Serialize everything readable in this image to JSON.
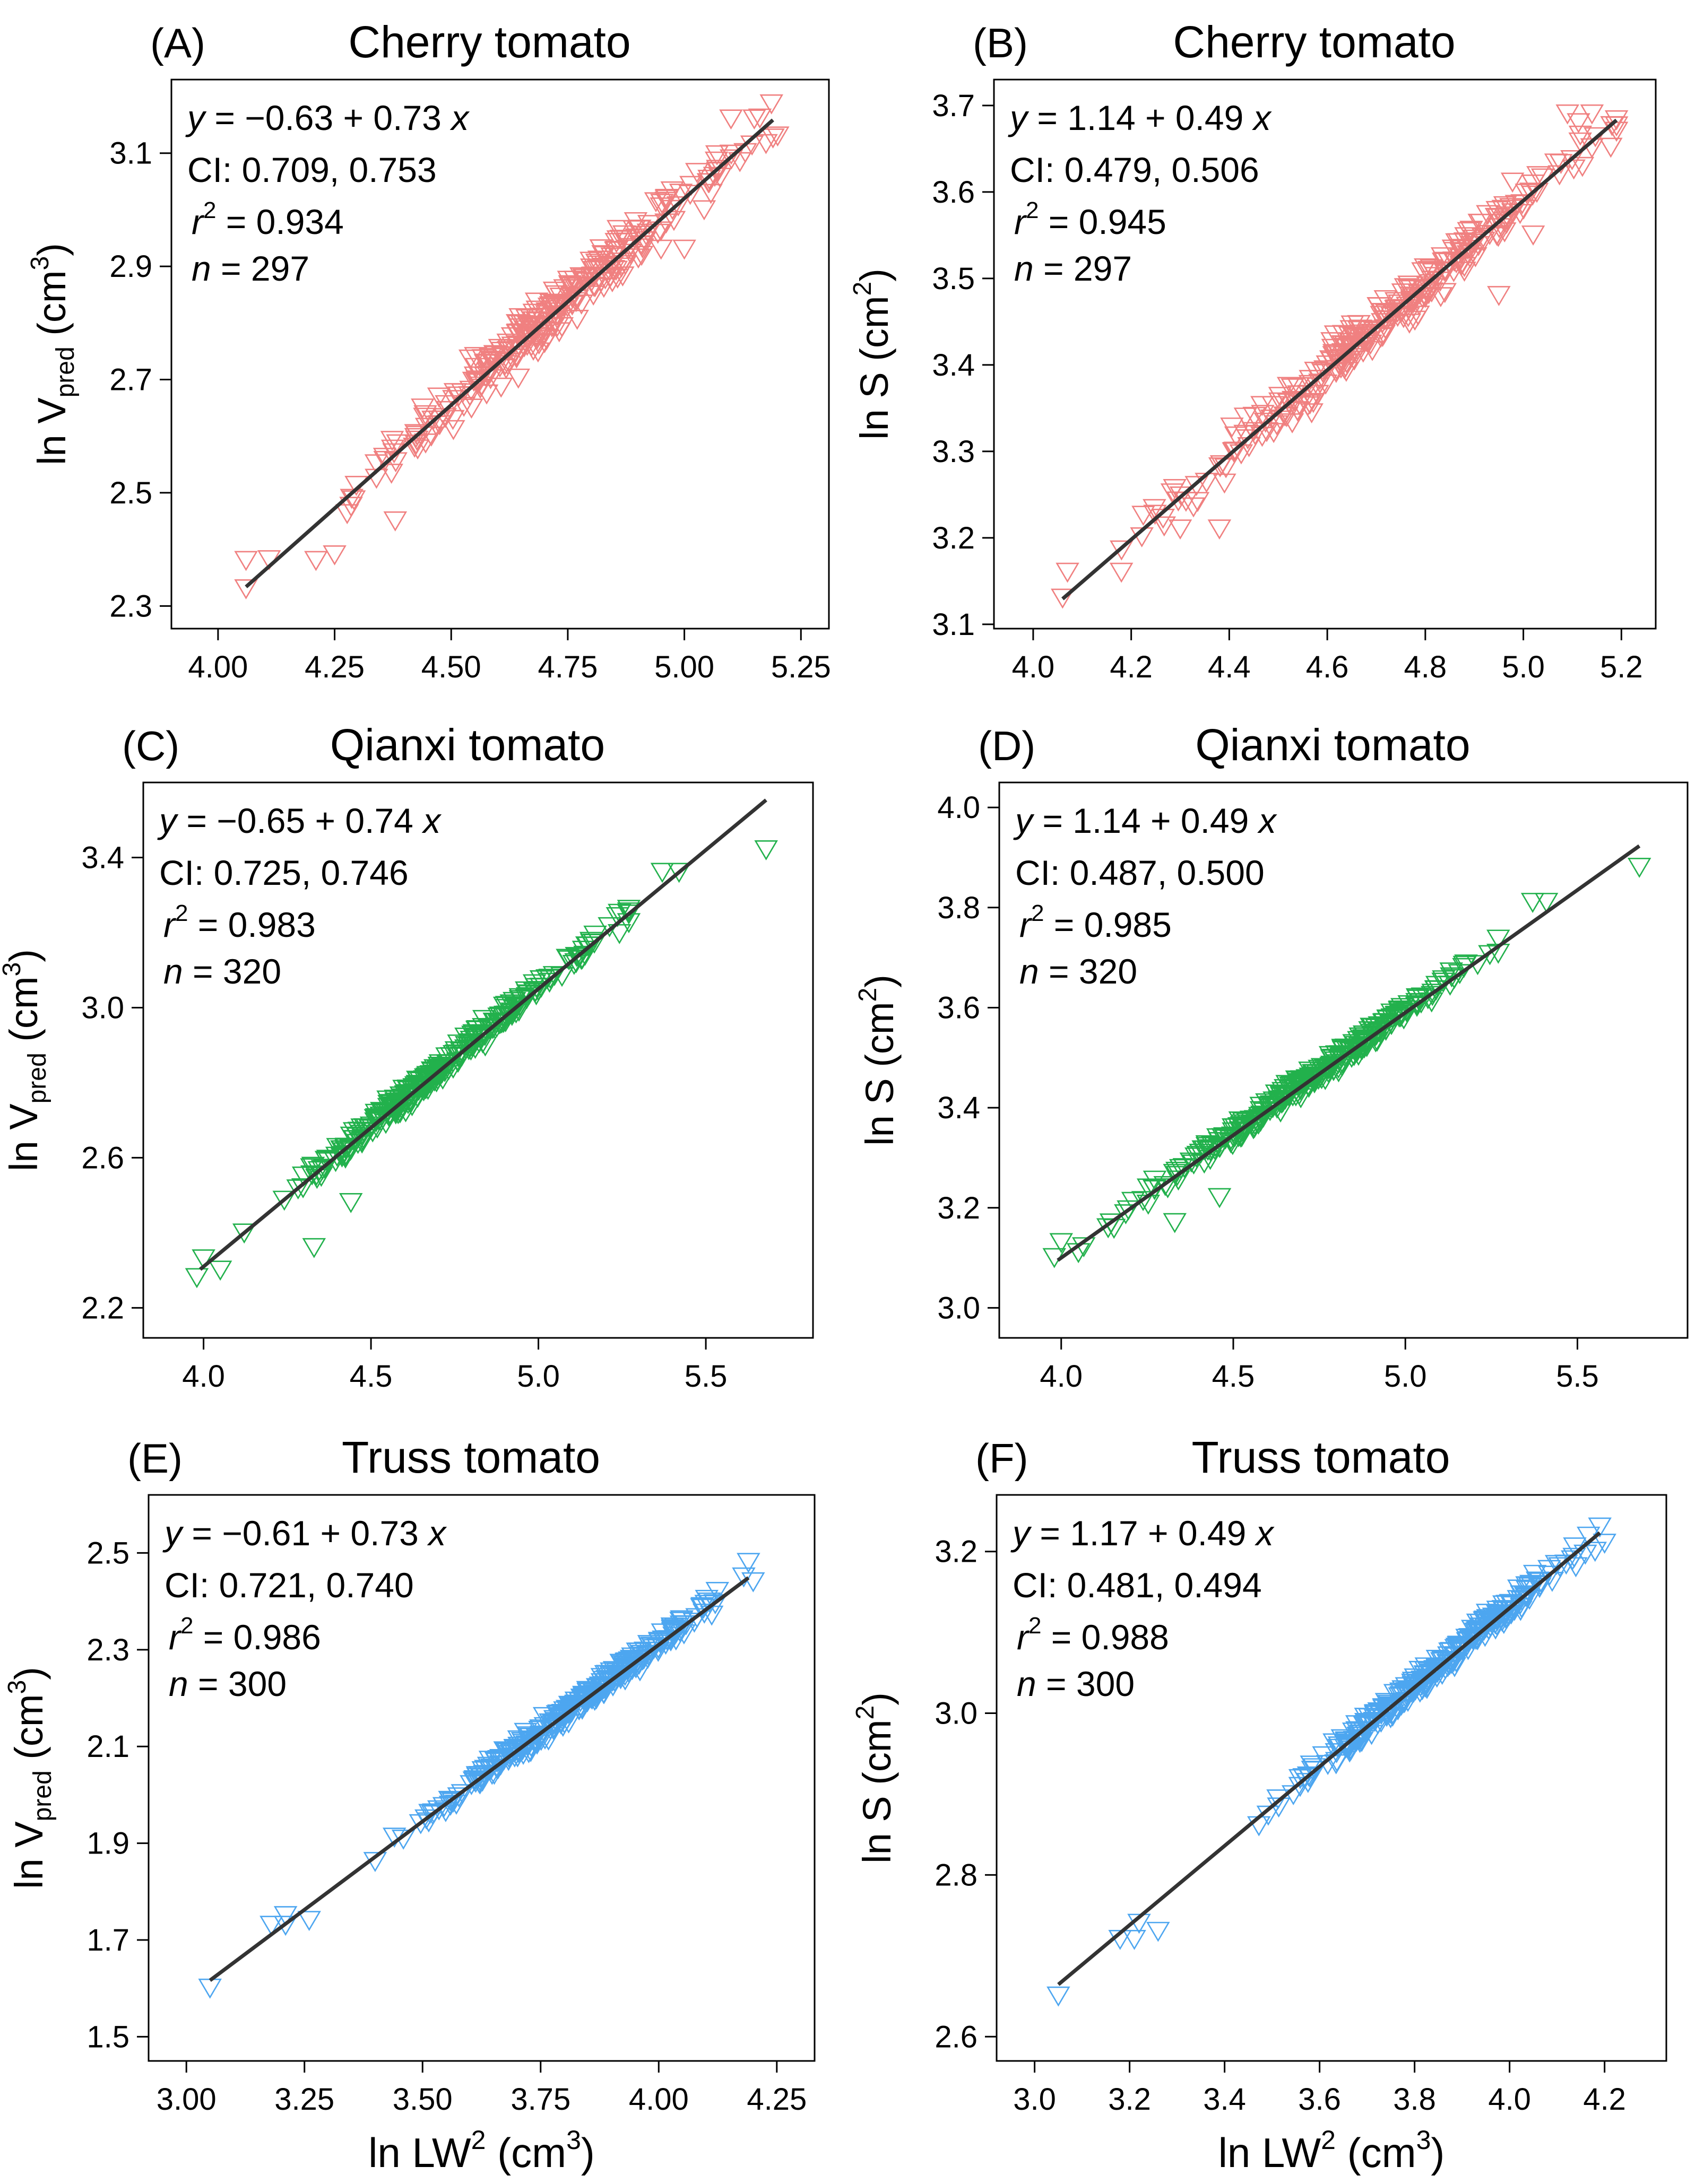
{
  "figure": {
    "x_axis_label": "ln LW",
    "x_axis_label_sup": "2",
    "x_axis_label_unit": "(cm",
    "x_axis_label_unit_sup": "3",
    "x_axis_label_close": ")"
  },
  "chart_data": [
    {
      "panel_letter": "(A)",
      "title": "Cherry tomato",
      "type": "scatter",
      "color": "#f08080",
      "ylabel_main": "ln V",
      "ylabel_sub": "pred",
      "ylabel_unit": "(cm",
      "ylabel_unit_sup": "3",
      "ylabel_close": ")",
      "xlim": [
        3.9,
        5.31
      ],
      "ylim": [
        2.26,
        3.23
      ],
      "xticks": [
        "4.00",
        "4.25",
        "4.50",
        "4.75",
        "5.00",
        "5.25"
      ],
      "yticks": [
        "2.3",
        "2.5",
        "2.7",
        "2.9",
        "3.1"
      ],
      "fit": {
        "intercept": -0.63,
        "slope": 0.73,
        "x_range": [
          4.06,
          5.19
        ]
      },
      "stats": {
        "eq_y": "y",
        "eq_rest": " = −0.63 + 0.73 ",
        "eq_x": "x",
        "ci": "CI: 0.709, 0.753",
        "r2_r": "r",
        "r2_sup": "2",
        "r2_val": " = 0.934",
        "n_n": "n",
        "n_val": " = 297"
      },
      "n": 297,
      "x_range": [
        4.06,
        5.19
      ],
      "noise": 0.045,
      "seed": 11,
      "outliers": [
        [
          4.06,
          2.33
        ],
        [
          4.06,
          2.38
        ],
        [
          4.38,
          2.45
        ],
        [
          4.21,
          2.38
        ],
        [
          5.1,
          3.16
        ],
        [
          5.15,
          3.16
        ],
        [
          5.2,
          3.13
        ],
        [
          4.95,
          2.93
        ],
        [
          5.0,
          2.93
        ],
        [
          4.25,
          2.39
        ]
      ]
    },
    {
      "panel_letter": "(B)",
      "title": "Cherry tomato",
      "type": "scatter",
      "color": "#f08080",
      "ylabel_main": "ln S",
      "ylabel_sub": "",
      "ylabel_unit": "(cm",
      "ylabel_unit_sup": "2",
      "ylabel_close": ")",
      "xlim": [
        3.92,
        5.27
      ],
      "ylim": [
        3.095,
        3.73
      ],
      "xticks": [
        "4.0",
        "4.2",
        "4.4",
        "4.6",
        "4.8",
        "5.0",
        "5.2"
      ],
      "yticks": [
        "3.1",
        "3.2",
        "3.3",
        "3.4",
        "3.5",
        "3.6",
        "3.7"
      ],
      "fit": {
        "intercept": 1.14,
        "slope": 0.49,
        "x_range": [
          4.06,
          5.19
        ]
      },
      "stats": {
        "eq_y": "y",
        "eq_rest": " = 1.14 + 0.49 ",
        "eq_x": "x",
        "ci": "CI: 0.479, 0.506",
        "r2_r": "r",
        "r2_sup": "2",
        "r2_val": " = 0.945",
        "n_n": "n",
        "n_val": " = 297"
      },
      "n": 297,
      "x_range": [
        4.06,
        5.19
      ],
      "noise": 0.03,
      "seed": 23,
      "outliers": [
        [
          4.06,
          3.13
        ],
        [
          4.07,
          3.16
        ],
        [
          4.38,
          3.21
        ],
        [
          4.18,
          3.16
        ],
        [
          5.09,
          3.69
        ],
        [
          5.14,
          3.69
        ],
        [
          5.19,
          3.67
        ],
        [
          5.02,
          3.55
        ],
        [
          4.95,
          3.48
        ],
        [
          4.3,
          3.21
        ]
      ]
    },
    {
      "panel_letter": "(C)",
      "title": "Qianxi tomato",
      "type": "scatter",
      "color": "#22b14c",
      "ylabel_main": "ln V",
      "ylabel_sub": "pred",
      "ylabel_unit": "(cm",
      "ylabel_unit_sup": "3",
      "ylabel_close": ")",
      "xlim": [
        3.82,
        5.82
      ],
      "ylim": [
        2.12,
        3.6
      ],
      "xticks": [
        "4.0",
        "4.5",
        "5.0",
        "5.5"
      ],
      "yticks": [
        "2.2",
        "2.6",
        "3.0",
        "3.4"
      ],
      "fit": {
        "intercept": -0.65,
        "slope": 0.74,
        "x_range": [
          3.99,
          5.68
        ]
      },
      "stats": {
        "eq_y": "y",
        "eq_rest": " = −0.65 + 0.74 ",
        "eq_x": "x",
        "ci": "CI: 0.725, 0.746",
        "r2_r": "r",
        "r2_sup": "2",
        "r2_val": " = 0.983",
        "n_n": "n",
        "n_val": " = 320"
      },
      "n": 320,
      "x_range": [
        3.99,
        5.27
      ],
      "noise": 0.03,
      "seed": 37,
      "outliers": [
        [
          3.98,
          2.28
        ],
        [
          4.05,
          2.3
        ],
        [
          4.33,
          2.36
        ],
        [
          4.44,
          2.48
        ],
        [
          5.37,
          3.36
        ],
        [
          5.42,
          3.36
        ],
        [
          5.68,
          3.42
        ],
        [
          4.0,
          2.33
        ]
      ]
    },
    {
      "panel_letter": "(D)",
      "title": "Qianxi tomato",
      "type": "scatter",
      "color": "#22b14c",
      "ylabel_main": "ln S",
      "ylabel_sub": "",
      "ylabel_unit": "(cm",
      "ylabel_unit_sup": "2",
      "ylabel_close": ")",
      "xlim": [
        3.82,
        5.82
      ],
      "ylim": [
        2.94,
        4.05
      ],
      "xticks": [
        "4.0",
        "4.5",
        "5.0",
        "5.5"
      ],
      "yticks": [
        "3.0",
        "3.2",
        "3.4",
        "3.6",
        "3.8",
        "4.0"
      ],
      "fit": {
        "intercept": 1.14,
        "slope": 0.49,
        "x_range": [
          3.99,
          5.68
        ]
      },
      "stats": {
        "eq_y": "y",
        "eq_rest": " = 1.14 + 0.49 ",
        "eq_x": "x",
        "ci": "CI: 0.487, 0.500",
        "r2_r": "r",
        "r2_sup": "2",
        "r2_val": " = 0.985",
        "n_n": "n",
        "n_val": " = 320"
      },
      "n": 320,
      "x_range": [
        3.99,
        5.27
      ],
      "noise": 0.02,
      "seed": 41,
      "outliers": [
        [
          3.98,
          3.1
        ],
        [
          4.05,
          3.11
        ],
        [
          4.33,
          3.17
        ],
        [
          4.46,
          3.22
        ],
        [
          5.37,
          3.81
        ],
        [
          5.41,
          3.81
        ],
        [
          5.68,
          3.88
        ],
        [
          4.0,
          3.13
        ]
      ]
    },
    {
      "panel_letter": "(E)",
      "title": "Truss tomato",
      "type": "scatter",
      "color": "#4da6f0",
      "ylabel_main": "ln V",
      "ylabel_sub": "pred",
      "ylabel_unit": "(cm",
      "ylabel_unit_sup": "3",
      "ylabel_close": ")",
      "xlim": [
        2.92,
        4.33
      ],
      "ylim": [
        1.45,
        2.62
      ],
      "xticks": [
        "3.00",
        "3.25",
        "3.50",
        "3.75",
        "4.00",
        "4.25"
      ],
      "yticks": [
        "1.5",
        "1.7",
        "1.9",
        "2.1",
        "2.3",
        "2.5"
      ],
      "fit": {
        "intercept": -0.61,
        "slope": 0.73,
        "x_range": [
          3.05,
          4.19
        ]
      },
      "stats": {
        "eq_y": "y",
        "eq_rest": " = −0.61 + 0.73 ",
        "eq_x": "x",
        "ci": "CI: 0.721, 0.740",
        "r2_r": "r",
        "r2_sup": "2",
        "r2_val": " = 0.986",
        "n_n": "n",
        "n_val": " = 300"
      },
      "n": 300,
      "x_range": [
        3.35,
        4.19
      ],
      "noise": 0.022,
      "seed": 53,
      "outliers": [
        [
          3.05,
          1.6
        ],
        [
          3.18,
          1.73
        ],
        [
          3.21,
          1.73
        ],
        [
          3.26,
          1.74
        ],
        [
          3.21,
          1.75
        ],
        [
          4.19,
          2.48
        ],
        [
          4.18,
          2.45
        ],
        [
          4.2,
          2.44
        ]
      ]
    },
    {
      "panel_letter": "(F)",
      "title": "Truss tomato",
      "type": "scatter",
      "color": "#4da6f0",
      "ylabel_main": "ln S",
      "ylabel_sub": "",
      "ylabel_unit": "(cm",
      "ylabel_unit_sup": "2",
      "ylabel_close": ")",
      "xlim": [
        2.92,
        4.33
      ],
      "ylim": [
        2.57,
        3.27
      ],
      "xticks": [
        "3.0",
        "3.2",
        "3.4",
        "3.6",
        "3.8",
        "4.0",
        "4.2"
      ],
      "yticks": [
        "2.6",
        "2.8",
        "3.0",
        "3.2"
      ],
      "fit": {
        "intercept": 1.17,
        "slope": 0.49,
        "x_range": [
          3.05,
          4.19
        ]
      },
      "stats": {
        "eq_y": "y",
        "eq_rest": " = 1.17 + 0.49 ",
        "eq_x": "x",
        "ci": "CI: 0.481, 0.494",
        "r2_r": "r",
        "r2_sup": "2",
        "r2_val": " = 0.988",
        "n_n": "n",
        "n_val": " = 300"
      },
      "n": 300,
      "x_range": [
        3.35,
        4.19
      ],
      "noise": 0.015,
      "seed": 67,
      "outliers": [
        [
          3.05,
          2.65
        ],
        [
          3.18,
          2.72
        ],
        [
          3.21,
          2.72
        ],
        [
          3.26,
          2.73
        ],
        [
          3.22,
          2.74
        ],
        [
          4.19,
          3.23
        ],
        [
          4.18,
          3.2
        ],
        [
          4.2,
          3.21
        ]
      ]
    }
  ]
}
